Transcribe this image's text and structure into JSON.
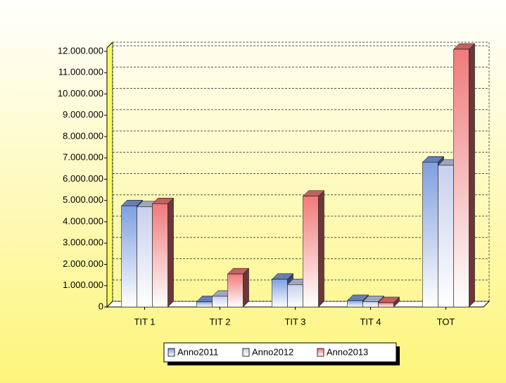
{
  "chart_data": {
    "type": "bar",
    "categories": [
      "TIT 1",
      "TIT 2",
      "TIT 3",
      "TIT 4",
      "TOT"
    ],
    "series": [
      {
        "name": "Anno2011",
        "color": "#7f9fe0",
        "values": [
          4750000,
          250000,
          1300000,
          300000,
          6800000
        ]
      },
      {
        "name": "Anno2012",
        "color": "#c8d0ec",
        "values": [
          4700000,
          500000,
          1050000,
          250000,
          6650000
        ]
      },
      {
        "name": "Anno2013",
        "color": "#f07a7a",
        "values": [
          4850000,
          1550000,
          5200000,
          200000,
          12100000
        ]
      }
    ],
    "ylim": [
      0,
      12000000
    ],
    "yticks": [
      0,
      {
        "value": 1000000,
        "label": "1.000.000"
      },
      {
        "value": 2000000,
        "label": "2.000.000"
      },
      {
        "value": 3000000,
        "label": "3.000.000"
      },
      {
        "value": 4000000,
        "label": "4.000.000"
      },
      {
        "value": 5000000,
        "label": "5.000.000"
      },
      {
        "value": 6000000,
        "label": "6.000.000"
      },
      {
        "value": 7000000,
        "label": "7.000.000"
      },
      {
        "value": 8000000,
        "label": "8.000.000"
      },
      {
        "value": 9000000,
        "label": "9.000.000"
      },
      {
        "value": 10000000,
        "label": "10.000.000"
      },
      {
        "value": 11000000,
        "label": "11.000.000"
      },
      {
        "value": 12000000,
        "label": "12.000.000"
      }
    ],
    "grid": true,
    "legend": "bottom"
  }
}
